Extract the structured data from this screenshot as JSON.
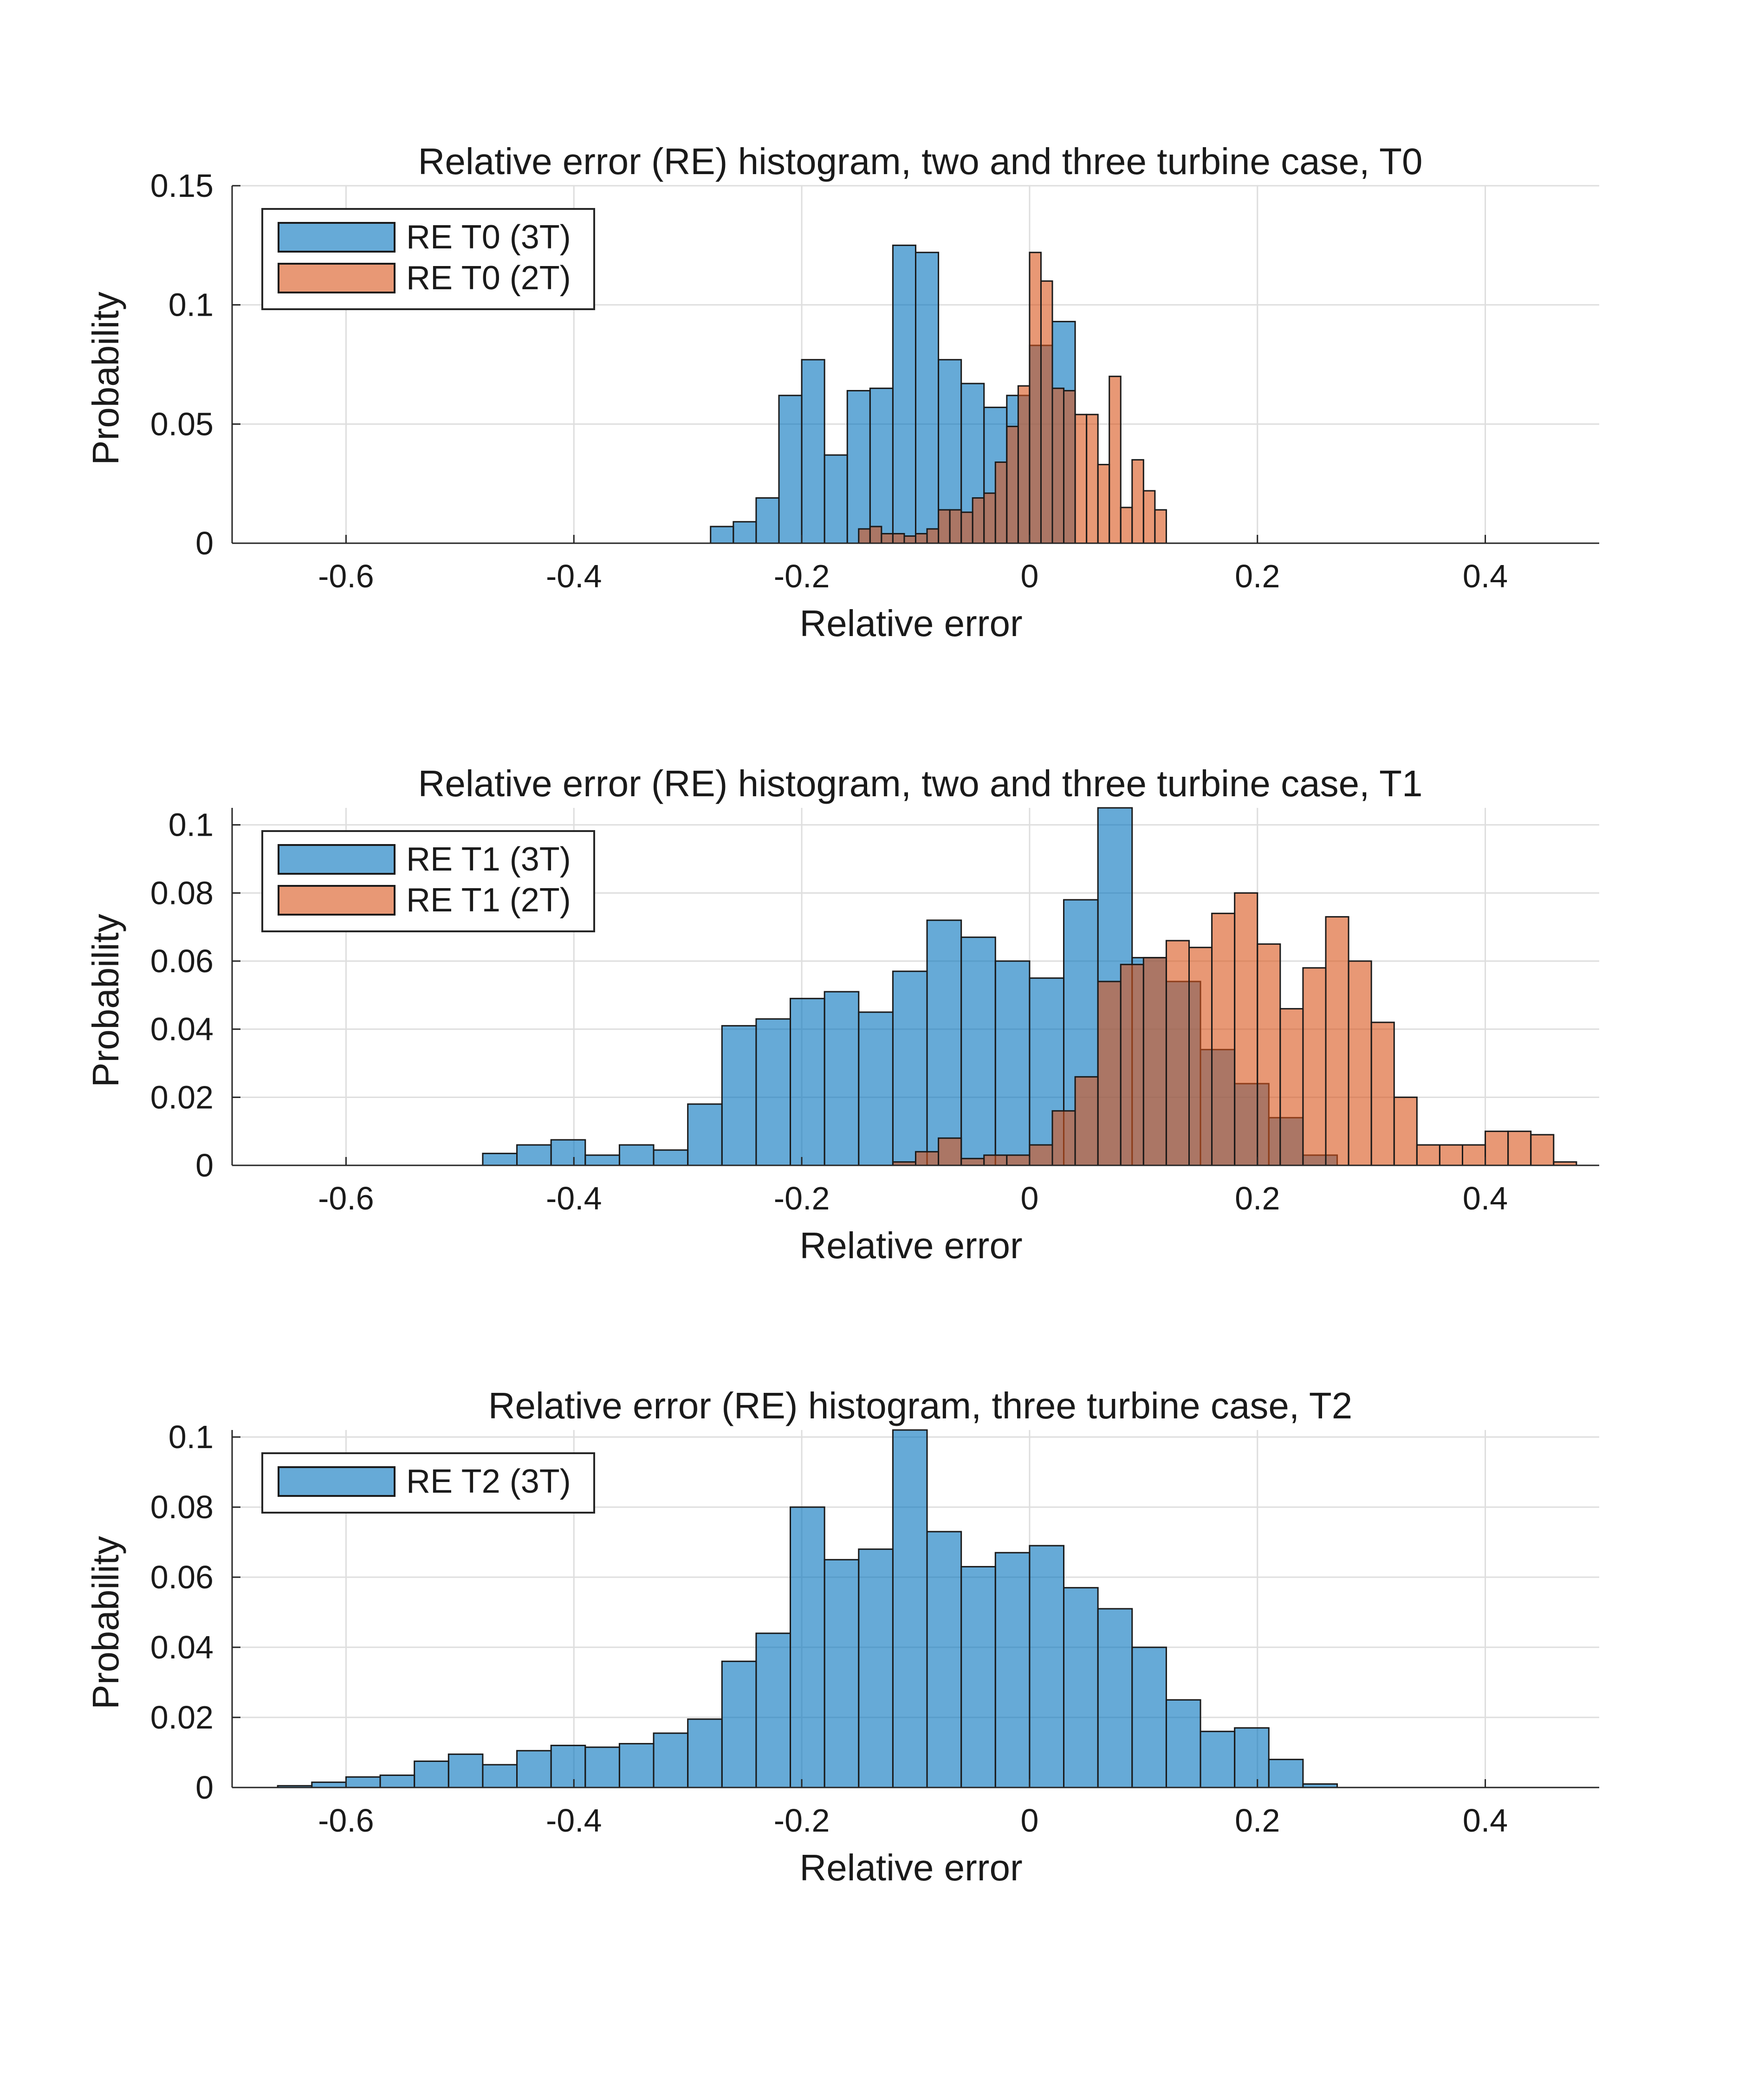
{
  "chart_data": [
    {
      "type": "bar",
      "title": "Relative error (RE) histogram, two and three turbine case, T0",
      "xlabel": "Relative error",
      "ylabel": "Probability",
      "xlim": [
        -0.7,
        0.5
      ],
      "ylim": [
        0,
        0.15
      ],
      "xticks": [
        -0.6,
        -0.4,
        -0.2,
        0,
        0.2,
        0.4
      ],
      "xtick_labels": [
        "-0.6",
        "-0.4",
        "-0.2",
        "0",
        "0.2",
        "0.4"
      ],
      "yticks": [
        0,
        0.05,
        0.1,
        0.15
      ],
      "ytick_labels": [
        "0",
        "0.05",
        "0.1",
        "0.15"
      ],
      "grid": true,
      "legend": "top-left",
      "series": [
        {
          "name": "RE T0 (3T)",
          "color": "#0072BD",
          "bin_width": 0.02,
          "bin_edges_start": -0.28,
          "values": [
            0.007,
            0.009,
            0.019,
            0.062,
            0.077,
            0.037,
            0.064,
            0.065,
            0.125,
            0.122,
            0.077,
            0.067,
            0.057,
            0.062,
            0.083,
            0.093
          ]
        },
        {
          "name": "RE T0 (2T)",
          "color": "#D95319",
          "bin_width": 0.01,
          "bin_edges_start": -0.15,
          "values": [
            0.006,
            0.007,
            0.004,
            0.004,
            0.003,
            0.004,
            0.006,
            0.014,
            0.014,
            0.013,
            0.019,
            0.021,
            0.034,
            0.049,
            0.066,
            0.122,
            0.11,
            0.065,
            0.064,
            0.054,
            0.054,
            0.033,
            0.07,
            0.015,
            0.035,
            0.022,
            0.014
          ]
        }
      ]
    },
    {
      "type": "bar",
      "title": "Relative error (RE) histogram, two and three turbine case, T1",
      "xlabel": "Relative error",
      "ylabel": "Probability",
      "xlim": [
        -0.7,
        0.5
      ],
      "ylim": [
        0,
        0.105
      ],
      "xticks": [
        -0.6,
        -0.4,
        -0.2,
        0,
        0.2,
        0.4
      ],
      "xtick_labels": [
        "-0.6",
        "-0.4",
        "-0.2",
        "0",
        "0.2",
        "0.4"
      ],
      "yticks": [
        0,
        0.02,
        0.04,
        0.06,
        0.08,
        0.1
      ],
      "ytick_labels": [
        "0",
        "0.02",
        "0.04",
        "0.06",
        "0.08",
        "0.1"
      ],
      "grid": true,
      "legend": "top-left",
      "series": [
        {
          "name": "RE T1 (3T)",
          "color": "#0072BD",
          "bin_width": 0.03,
          "bin_edges_start": -0.48,
          "values": [
            0.0035,
            0.006,
            0.0075,
            0.003,
            0.006,
            0.0045,
            0.018,
            0.041,
            0.043,
            0.049,
            0.051,
            0.045,
            0.057,
            0.072,
            0.067,
            0.06,
            0.055,
            0.078,
            0.105,
            0.061,
            0.054,
            0.034,
            0.024,
            0.014,
            0.003
          ]
        },
        {
          "name": "RE T1 (2T)",
          "color": "#D95319",
          "bin_width": 0.02,
          "bin_edges_start": -0.12,
          "values": [
            0.001,
            0.004,
            0.008,
            0.002,
            0.003,
            0.003,
            0.006,
            0.016,
            0.026,
            0.054,
            0.059,
            0.061,
            0.066,
            0.064,
            0.074,
            0.08,
            0.065,
            0.046,
            0.058,
            0.073,
            0.06,
            0.042,
            0.02,
            0.006,
            0.006,
            0.006,
            0.01,
            0.01,
            0.009,
            0.001
          ]
        }
      ]
    },
    {
      "type": "bar",
      "title": "Relative error (RE) histogram, three turbine case, T2",
      "xlabel": "Relative error",
      "ylabel": "Probability",
      "xlim": [
        -0.7,
        0.5
      ],
      "ylim": [
        0,
        0.102
      ],
      "xticks": [
        -0.6,
        -0.4,
        -0.2,
        0,
        0.2,
        0.4
      ],
      "xtick_labels": [
        "-0.6",
        "-0.4",
        "-0.2",
        "0",
        "0.2",
        "0.4"
      ],
      "yticks": [
        0,
        0.02,
        0.04,
        0.06,
        0.08,
        0.1
      ],
      "ytick_labels": [
        "0",
        "0.02",
        "0.04",
        "0.06",
        "0.08",
        "0.1"
      ],
      "grid": true,
      "legend": "top-left",
      "series": [
        {
          "name": "RE T2 (3T)",
          "color": "#0072BD",
          "bin_width": 0.03,
          "bin_edges_start": -0.66,
          "values": [
            0.0005,
            0.0015,
            0.003,
            0.0035,
            0.0075,
            0.0095,
            0.0065,
            0.0105,
            0.012,
            0.0115,
            0.0125,
            0.0155,
            0.0195,
            0.036,
            0.044,
            0.08,
            0.065,
            0.068,
            0.102,
            0.073,
            0.063,
            0.067,
            0.069,
            0.057,
            0.051,
            0.04,
            0.025,
            0.016,
            0.017,
            0.008,
            0.001
          ]
        }
      ]
    }
  ]
}
